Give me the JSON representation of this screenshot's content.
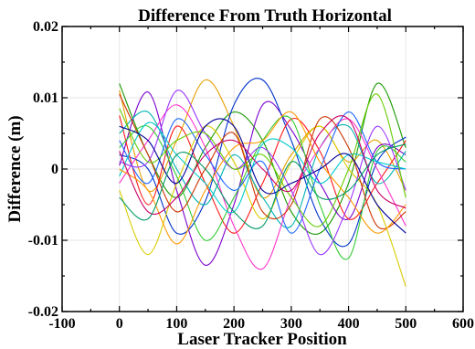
{
  "chart_data": {
    "type": "line",
    "title": "Difference From Truth Horizontal",
    "xlabel": "Laser Tracker Position",
    "ylabel": "Difference (m)",
    "xlim": [
      -100,
      600
    ],
    "ylim": [
      -0.02,
      0.02
    ],
    "x_ticks": [
      -100,
      0,
      100,
      200,
      300,
      400,
      500,
      600
    ],
    "y_ticks": [
      -0.02,
      -0.01,
      0,
      0.01,
      0.02
    ],
    "x_tick_labels": [
      "-100",
      "0",
      "100",
      "200",
      "300",
      "400",
      "500",
      "600"
    ],
    "y_tick_labels": [
      "-0.02",
      "-0.01",
      "0",
      "0.01",
      "0.02"
    ],
    "grid": true,
    "legend": "none",
    "series": [
      {
        "color": "#1a9900",
        "x": [
          0,
          50,
          100,
          150,
          200,
          250,
          300,
          350,
          400,
          450,
          500
        ],
        "y": [
          0.012,
          0.002,
          -0.004,
          0.003,
          0.008,
          0.004,
          -0.006,
          -0.009,
          -0.002,
          0.012,
          0.003
        ]
      },
      {
        "color": "#e6a000",
        "x": [
          0,
          50,
          100,
          150,
          200,
          250,
          300,
          350,
          400,
          450,
          500
        ],
        "y": [
          0.011,
          -0.003,
          0.004,
          0.0125,
          0.006,
          -0.004,
          0.002,
          0.006,
          0.001,
          0.004,
          -0.003
        ]
      },
      {
        "color": "#7a00cc",
        "x": [
          0,
          50,
          100,
          150,
          200,
          250,
          300,
          350,
          400,
          450,
          500
        ],
        "y": [
          0.0005,
          0.0108,
          -0.003,
          -0.0135,
          -0.005,
          0.009,
          0.0055,
          -0.002,
          -0.007,
          0.003,
          0.002
        ]
      },
      {
        "color": "#0033cc",
        "x": [
          0,
          50,
          100,
          150,
          200,
          250,
          300,
          350,
          400,
          450,
          500
        ],
        "y": [
          0.002,
          0.0,
          -0.009,
          -0.0045,
          0.009,
          0.0125,
          0.004,
          -0.007,
          -0.0105,
          0.001,
          0.0045
        ]
      },
      {
        "color": "#ff1a1a",
        "x": [
          0,
          50,
          100,
          150,
          200,
          250,
          300,
          350,
          400,
          450,
          500
        ],
        "y": [
          0.0075,
          -0.005,
          0.006,
          -0.002,
          -0.009,
          -0.002,
          0.007,
          0.0025,
          -0.007,
          -0.002,
          0.004
        ]
      },
      {
        "color": "#00b3b3",
        "x": [
          0,
          50,
          100,
          150,
          200,
          250,
          300,
          350,
          400,
          450,
          500
        ],
        "y": [
          0.005,
          0.008,
          0.0,
          -0.005,
          0.002,
          -0.004,
          -0.008,
          0.003,
          0.006,
          -0.002,
          0.0025
        ]
      },
      {
        "color": "#d9cc00",
        "x": [
          0,
          50,
          100,
          150,
          200,
          250,
          300,
          350,
          400,
          450,
          500
        ],
        "y": [
          -0.003,
          -0.012,
          -0.002,
          0.006,
          0.001,
          -0.007,
          0.001,
          0.006,
          0.0,
          -0.005,
          -0.0165
        ]
      },
      {
        "color": "#ff33cc",
        "x": [
          0,
          50,
          100,
          150,
          200,
          250,
          300,
          350,
          400,
          450,
          500
        ],
        "y": [
          -0.002,
          0.004,
          0.009,
          0.003,
          -0.008,
          -0.014,
          -0.004,
          0.003,
          0.007,
          0.0,
          -0.008
        ]
      },
      {
        "color": "#33cc33",
        "x": [
          0,
          50,
          100,
          150,
          200,
          250,
          300,
          350,
          400,
          450,
          500
        ],
        "y": [
          0.003,
          0.006,
          -0.001,
          -0.01,
          -0.004,
          0.004,
          0.007,
          -0.005,
          -0.0125,
          0.0025,
          0.001
        ]
      },
      {
        "color": "#1a66ff",
        "x": [
          0,
          50,
          100,
          150,
          200,
          250,
          300,
          350,
          400,
          450,
          500
        ],
        "y": [
          0.004,
          -0.002,
          0.007,
          0.002,
          -0.003,
          0.001,
          -0.009,
          0.0,
          0.008,
          0.001,
          0.0
        ]
      },
      {
        "color": "#9933ff",
        "x": [
          0,
          50,
          100,
          150,
          200,
          250,
          300,
          350,
          400,
          450,
          500
        ],
        "y": [
          0.001,
          0.001,
          0.011,
          0.005,
          0.0,
          0.003,
          -0.003,
          -0.012,
          -0.005,
          0.006,
          -0.003
        ]
      },
      {
        "color": "#cc3300",
        "x": [
          0,
          50,
          100,
          150,
          200,
          250,
          300,
          350,
          400,
          450,
          500
        ],
        "y": [
          0.0105,
          0.002,
          -0.006,
          0.0,
          0.005,
          -0.006,
          -0.005,
          0.007,
          0.003,
          -0.008,
          -0.006
        ]
      },
      {
        "color": "#00cccc",
        "x": [
          0,
          50,
          100,
          150,
          200,
          250,
          300,
          350,
          400,
          450,
          500
        ],
        "y": [
          -0.001,
          0.0065,
          0.002,
          -0.002,
          -0.006,
          0.0035,
          0.003,
          -0.002,
          0.002,
          0.001,
          0.0
        ]
      },
      {
        "color": "#66cc00",
        "x": [
          0,
          50,
          100,
          150,
          200,
          250,
          300,
          350,
          400,
          450,
          500
        ],
        "y": [
          0.0085,
          0.001,
          0.004,
          0.005,
          0.0,
          0.002,
          -0.004,
          -0.008,
          0.0,
          0.0105,
          -0.004
        ]
      },
      {
        "color": "#ff9900",
        "x": [
          0,
          50,
          100,
          150,
          200,
          250,
          300,
          350,
          400,
          450,
          500
        ],
        "y": [
          0.0,
          -0.003,
          -0.0105,
          -0.003,
          0.003,
          0.004,
          0.008,
          0.001,
          -0.004,
          -0.009,
          -0.005
        ]
      },
      {
        "color": "#000099",
        "x": [
          0,
          50,
          100,
          150,
          200,
          250,
          300,
          350,
          400,
          450,
          500
        ],
        "y": [
          0.006,
          0.004,
          -0.002,
          0.006,
          0.006,
          -0.003,
          -0.002,
          0.0,
          0.002,
          -0.005,
          -0.009
        ]
      },
      {
        "color": "#cc0066",
        "x": [
          0,
          50,
          100,
          150,
          200,
          250,
          300,
          350,
          400,
          450,
          500
        ],
        "y": [
          0.0025,
          -0.006,
          -0.004,
          0.002,
          0.004,
          0.0,
          -0.003,
          0.005,
          0.007,
          -0.003,
          -0.0055
        ]
      },
      {
        "color": "#009966",
        "x": [
          0,
          50,
          100,
          150,
          200,
          250,
          300,
          350,
          400,
          450,
          500
        ],
        "y": [
          -0.004,
          -0.007,
          0.002,
          0.0,
          -0.006,
          -0.008,
          0.001,
          -0.004,
          -0.003,
          0.002,
          0.0035
        ]
      }
    ]
  }
}
